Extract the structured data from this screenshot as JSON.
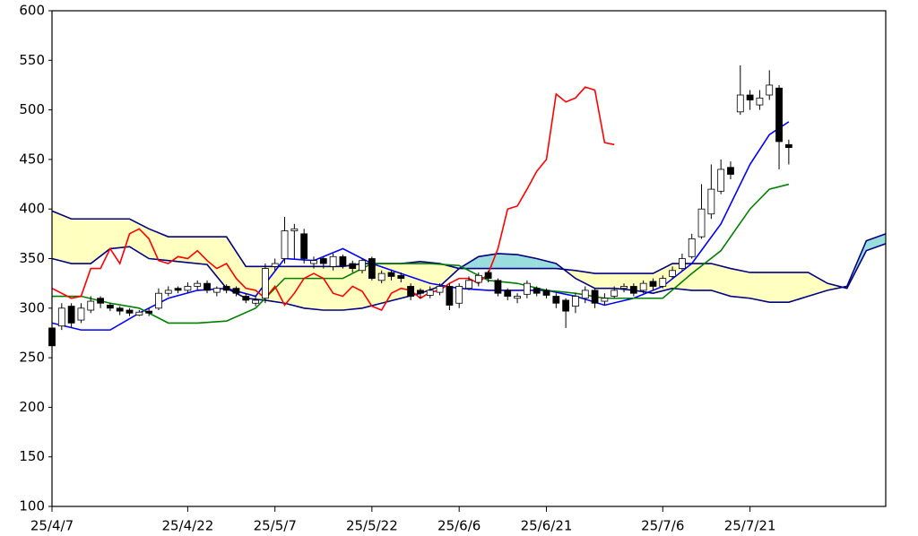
{
  "chart_data": {
    "type": "candlestick",
    "xlim": [
      0,
      86
    ],
    "xticks": [
      {
        "value": 0,
        "label": "25/4/7"
      },
      {
        "value": 14,
        "label": "25/4/22"
      },
      {
        "value": 23,
        "label": "25/5/7"
      },
      {
        "value": 33,
        "label": "25/5/22"
      },
      {
        "value": 42,
        "label": "25/6/6"
      },
      {
        "value": 51,
        "label": "25/6/21"
      },
      {
        "value": 63,
        "label": "25/7/6"
      },
      {
        "value": 72,
        "label": "25/7/21"
      }
    ],
    "ylim": [
      100,
      600
    ],
    "yticks": [
      100,
      150,
      200,
      250,
      300,
      350,
      400,
      450,
      500,
      550,
      600
    ],
    "candles": {
      "up_color": "#ffffff",
      "down_color": "#000000",
      "x": [
        0,
        1,
        2,
        3,
        4,
        5,
        6,
        7,
        8,
        9,
        10,
        11,
        12,
        13,
        14,
        15,
        16,
        17,
        18,
        19,
        20,
        21,
        22,
        23,
        24,
        25,
        26,
        27,
        28,
        29,
        30,
        31,
        32,
        33,
        34,
        35,
        36,
        37,
        38,
        39,
        40,
        41,
        42,
        43,
        44,
        45,
        46,
        47,
        48,
        49,
        50,
        51,
        52,
        53,
        54,
        55,
        56,
        57,
        58,
        59,
        60,
        61,
        62,
        63,
        64,
        65,
        66,
        67,
        68,
        69,
        70,
        71,
        72,
        73,
        74,
        75,
        76
      ],
      "open": [
        280,
        282,
        302,
        288,
        298,
        310,
        303,
        300,
        298,
        293,
        297,
        300,
        315,
        320,
        318,
        322,
        325,
        316,
        322,
        320,
        312,
        305,
        310,
        342,
        350,
        378,
        375,
        345,
        350,
        342,
        352,
        345,
        338,
        350,
        328,
        336,
        333,
        322,
        318,
        313,
        316,
        322,
        305,
        320,
        326,
        336,
        328,
        318,
        310,
        314,
        320,
        318,
        312,
        308,
        302,
        310,
        318,
        307,
        312,
        320,
        322,
        318,
        327,
        322,
        332,
        340,
        352,
        372,
        395,
        418,
        442,
        498,
        515,
        505,
        515,
        522,
        465
      ],
      "high": [
        285,
        305,
        305,
        305,
        312,
        312,
        305,
        302,
        300,
        298,
        300,
        320,
        322,
        322,
        326,
        328,
        328,
        322,
        324,
        322,
        315,
        312,
        345,
        350,
        392,
        385,
        380,
        352,
        352,
        355,
        354,
        348,
        350,
        352,
        338,
        338,
        336,
        325,
        320,
        322,
        325,
        325,
        325,
        332,
        336,
        338,
        330,
        320,
        315,
        328,
        322,
        320,
        315,
        310,
        315,
        322,
        320,
        315,
        322,
        325,
        325,
        328,
        330,
        333,
        342,
        355,
        375,
        425,
        445,
        450,
        448,
        545,
        520,
        520,
        540,
        525,
        470
      ],
      "low": [
        250,
        278,
        280,
        285,
        295,
        300,
        297,
        293,
        292,
        292,
        292,
        298,
        312,
        315,
        315,
        318,
        315,
        312,
        315,
        312,
        305,
        302,
        305,
        338,
        345,
        350,
        345,
        340,
        340,
        338,
        340,
        336,
        335,
        328,
        325,
        328,
        326,
        308,
        310,
        310,
        313,
        298,
        300,
        318,
        322,
        326,
        312,
        308,
        305,
        310,
        312,
        310,
        300,
        280,
        295,
        305,
        300,
        303,
        310,
        316,
        312,
        315,
        318,
        320,
        330,
        338,
        350,
        370,
        390,
        415,
        430,
        495,
        500,
        500,
        510,
        440,
        445
      ],
      "close": [
        262,
        300,
        285,
        300,
        307,
        305,
        300,
        297,
        295,
        296,
        295,
        315,
        318,
        318,
        322,
        325,
        318,
        320,
        318,
        315,
        308,
        308,
        340,
        345,
        378,
        380,
        350,
        348,
        345,
        352,
        343,
        340,
        348,
        330,
        335,
        332,
        330,
        312,
        315,
        318,
        322,
        303,
        322,
        328,
        333,
        330,
        315,
        312,
        312,
        325,
        315,
        313,
        305,
        297,
        312,
        318,
        305,
        310,
        318,
        322,
        315,
        325,
        322,
        330,
        338,
        350,
        370,
        400,
        420,
        440,
        435,
        515,
        510,
        512,
        525,
        468,
        462
      ]
    },
    "cloud": {
      "line_color": "#000080",
      "fill_a_above": "#99dddd",
      "fill_b_above": "#ffffc0",
      "x": [
        0,
        2,
        4,
        6,
        8,
        10,
        12,
        14,
        16,
        18,
        20,
        22,
        24,
        26,
        28,
        30,
        32,
        34,
        36,
        38,
        40,
        42,
        44,
        46,
        48,
        50,
        52,
        54,
        56,
        58,
        60,
        62,
        64,
        66,
        68,
        70,
        72,
        74,
        76,
        78,
        80,
        82,
        84,
        86
      ],
      "span_a": [
        350,
        345,
        345,
        360,
        362,
        350,
        348,
        346,
        344,
        320,
        310,
        308,
        305,
        300,
        298,
        298,
        300,
        305,
        310,
        315,
        322,
        340,
        352,
        355,
        354,
        350,
        345,
        330,
        320,
        320,
        318,
        315,
        320,
        318,
        318,
        312,
        310,
        306,
        306,
        312,
        318,
        322,
        368,
        375
      ],
      "span_b": [
        398,
        390,
        390,
        390,
        390,
        380,
        372,
        372,
        372,
        372,
        342,
        342,
        342,
        342,
        342,
        342,
        345,
        345,
        345,
        347,
        345,
        340,
        340,
        340,
        340,
        340,
        340,
        338,
        335,
        335,
        335,
        335,
        345,
        345,
        345,
        340,
        336,
        336,
        336,
        336,
        325,
        320,
        358,
        365
      ]
    },
    "lines": [
      {
        "color": "#0000ff",
        "x": [
          0,
          3,
          6,
          9,
          12,
          15,
          18,
          21,
          24,
          27,
          30,
          33,
          36,
          39,
          42,
          45,
          48,
          51,
          54,
          57,
          60,
          63,
          66,
          69,
          72,
          74,
          76
        ],
        "values": [
          285,
          278,
          278,
          295,
          310,
          318,
          320,
          312,
          350,
          348,
          360,
          345,
          335,
          325,
          320,
          318,
          318,
          318,
          312,
          303,
          310,
          322,
          345,
          385,
          445,
          475,
          488
        ]
      },
      {
        "color": "#008000",
        "x": [
          0,
          3,
          6,
          9,
          12,
          15,
          18,
          21,
          24,
          27,
          30,
          33,
          36,
          39,
          42,
          45,
          48,
          51,
          54,
          57,
          60,
          63,
          66,
          69,
          72,
          74,
          76
        ],
        "values": [
          312,
          312,
          305,
          300,
          285,
          285,
          287,
          300,
          330,
          330,
          330,
          345,
          345,
          345,
          343,
          328,
          325,
          318,
          315,
          310,
          310,
          310,
          335,
          358,
          400,
          420,
          425
        ]
      },
      {
        "color": "#ff0000",
        "x": [
          0,
          2,
          3,
          4,
          5,
          6,
          7,
          8,
          9,
          10,
          11,
          12,
          13,
          14,
          15,
          16,
          17,
          18,
          19,
          20,
          21,
          22,
          23,
          24,
          25,
          26,
          27,
          28,
          29,
          30,
          31,
          32,
          33,
          34,
          35,
          36,
          37,
          38,
          39,
          40,
          41,
          42,
          43,
          44,
          45,
          46,
          47,
          48,
          49,
          50,
          51,
          52,
          53,
          54,
          55,
          56,
          57,
          58
        ],
        "values": [
          320,
          310,
          312,
          340,
          340,
          360,
          345,
          375,
          380,
          370,
          348,
          345,
          352,
          350,
          358,
          348,
          340,
          345,
          330,
          320,
          318,
          310,
          322,
          303,
          315,
          330,
          335,
          330,
          315,
          312,
          322,
          317,
          302,
          298,
          315,
          320,
          318,
          310,
          316,
          318,
          325,
          330,
          330,
          325,
          335,
          360,
          400,
          403,
          420,
          438,
          450,
          516,
          508,
          512,
          523,
          520,
          467,
          465
        ]
      }
    ]
  }
}
